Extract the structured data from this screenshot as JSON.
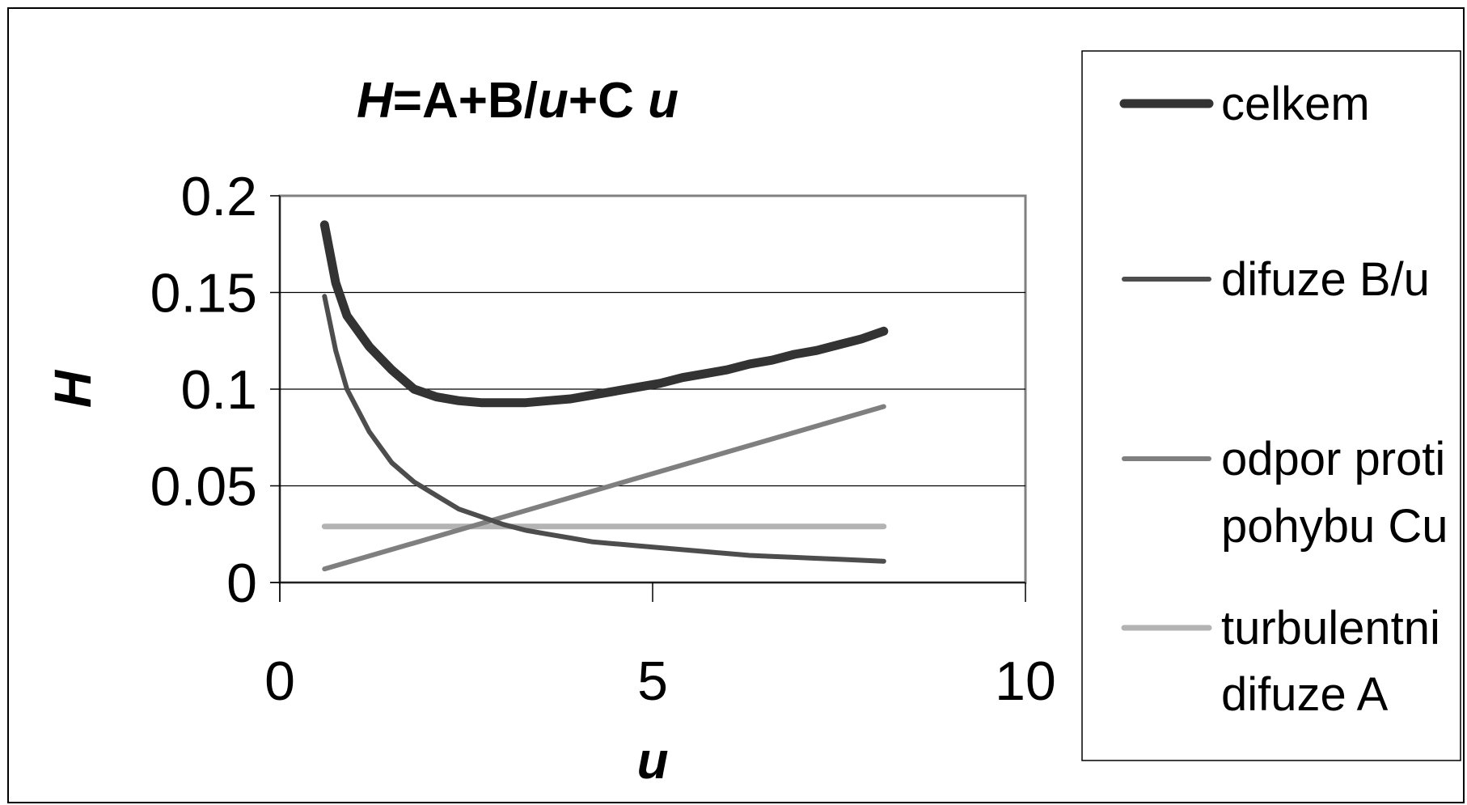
{
  "chart_data": {
    "type": "line",
    "title": {
      "parts": [
        {
          "text": "H",
          "italic": true
        },
        {
          "text": "=A+B/",
          "italic": false
        },
        {
          "text": "u",
          "italic": true
        },
        {
          "text": "+C ",
          "italic": false
        },
        {
          "text": "u",
          "italic": true
        }
      ]
    },
    "xlabel": "u",
    "ylabel": "H",
    "xlim": [
      0,
      10
    ],
    "ylim": [
      0,
      0.2
    ],
    "xticks": [
      0,
      5,
      10
    ],
    "xtick_labels": [
      "0",
      "5",
      "10"
    ],
    "yticks": [
      0,
      0.05,
      0.1,
      0.15,
      0.2
    ],
    "ytick_labels": [
      "0",
      "0.05",
      "0.1",
      "0.15",
      "0.2"
    ],
    "grid": "horizontal",
    "legend": "right",
    "series": [
      {
        "name": "celkem",
        "color": "#333333",
        "width": 11,
        "points": [
          [
            0.6,
            0.185
          ],
          [
            0.75,
            0.155
          ],
          [
            0.9,
            0.138
          ],
          [
            1.2,
            0.122
          ],
          [
            1.5,
            0.11
          ],
          [
            1.8,
            0.1
          ],
          [
            2.1,
            0.096
          ],
          [
            2.4,
            0.094
          ],
          [
            2.7,
            0.093
          ],
          [
            3.0,
            0.093
          ],
          [
            3.3,
            0.093
          ],
          [
            3.6,
            0.094
          ],
          [
            3.9,
            0.095
          ],
          [
            4.2,
            0.097
          ],
          [
            4.5,
            0.099
          ],
          [
            4.8,
            0.101
          ],
          [
            5.1,
            0.103
          ],
          [
            5.4,
            0.106
          ],
          [
            5.7,
            0.108
          ],
          [
            6.0,
            0.11
          ],
          [
            6.3,
            0.113
          ],
          [
            6.6,
            0.115
          ],
          [
            6.9,
            0.118
          ],
          [
            7.2,
            0.12
          ],
          [
            7.5,
            0.123
          ],
          [
            7.8,
            0.126
          ],
          [
            8.1,
            0.13
          ]
        ]
      },
      {
        "name": "difuze  B/u",
        "color": "#4d4d4d",
        "width": 6,
        "points": [
          [
            0.6,
            0.148
          ],
          [
            0.75,
            0.12
          ],
          [
            0.9,
            0.1
          ],
          [
            1.2,
            0.078
          ],
          [
            1.5,
            0.062
          ],
          [
            1.8,
            0.052
          ],
          [
            2.1,
            0.045
          ],
          [
            2.4,
            0.038
          ],
          [
            2.7,
            0.034
          ],
          [
            3.0,
            0.03
          ],
          [
            3.3,
            0.027
          ],
          [
            3.6,
            0.025
          ],
          [
            3.9,
            0.023
          ],
          [
            4.2,
            0.021
          ],
          [
            4.5,
            0.02
          ],
          [
            4.8,
            0.019
          ],
          [
            5.1,
            0.018
          ],
          [
            5.4,
            0.017
          ],
          [
            5.7,
            0.016
          ],
          [
            6.0,
            0.015
          ],
          [
            6.3,
            0.014
          ],
          [
            6.6,
            0.0135
          ],
          [
            6.9,
            0.013
          ],
          [
            7.2,
            0.0125
          ],
          [
            7.5,
            0.012
          ],
          [
            7.8,
            0.0115
          ],
          [
            8.1,
            0.011
          ]
        ]
      },
      {
        "name": "odpor proti pohybu Cu",
        "label_lines": [
          "odpor proti",
          "pohybu Cu"
        ],
        "color": "#7f7f7f",
        "width": 6,
        "points": [
          [
            0.6,
            0.007
          ],
          [
            8.1,
            0.091
          ]
        ]
      },
      {
        "name": "turbulentni difuze A",
        "label_lines": [
          "turbulentni",
          "difuze A"
        ],
        "color": "#b3b3b3",
        "width": 7,
        "points": [
          [
            0.6,
            0.029
          ],
          [
            8.1,
            0.029
          ]
        ]
      }
    ],
    "legend_entries": [
      {
        "lines": [
          "celkem"
        ],
        "color": "#333333",
        "width": 11
      },
      {
        "lines": [
          "difuze  B/u"
        ],
        "color": "#4d4d4d",
        "width": 6
      },
      {
        "lines": [
          "odpor proti",
          "pohybu Cu"
        ],
        "color": "#7f7f7f",
        "width": 6
      },
      {
        "lines": [
          "turbulentni",
          "difuze A"
        ],
        "color": "#b3b3b3",
        "width": 7
      }
    ]
  }
}
